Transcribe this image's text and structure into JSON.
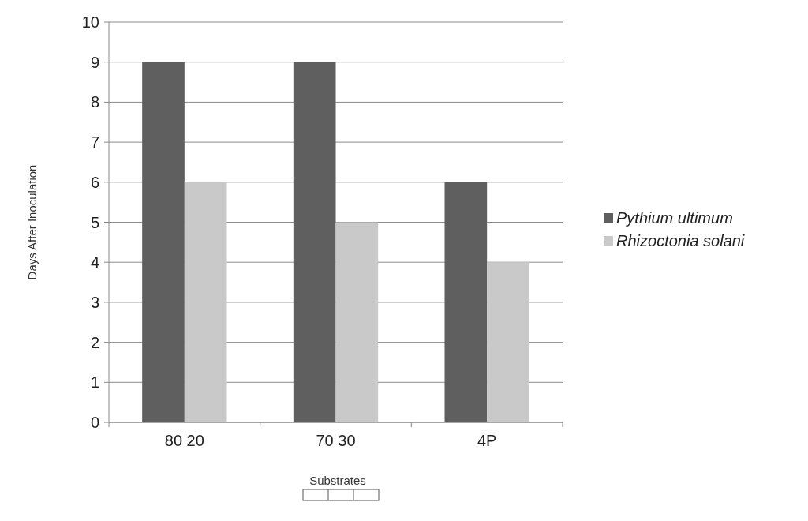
{
  "chart_data": {
    "type": "bar",
    "xlabel": "Substrates",
    "ylabel": "Days After Inoculation",
    "categories": [
      "80 20",
      "70 30",
      "4P"
    ],
    "series": [
      {
        "name": "Pythium ultimum",
        "color": "#5f5f5f",
        "values": [
          9,
          9,
          6
        ]
      },
      {
        "name": "Rhizoctonia solani",
        "color": "#c9c9c9",
        "values": [
          6,
          5,
          4
        ]
      }
    ],
    "ylim": [
      0,
      10
    ],
    "yticks": [
      0,
      1,
      2,
      3,
      4,
      5,
      6,
      7,
      8,
      9,
      10
    ],
    "grid": "y",
    "legend": "right"
  }
}
